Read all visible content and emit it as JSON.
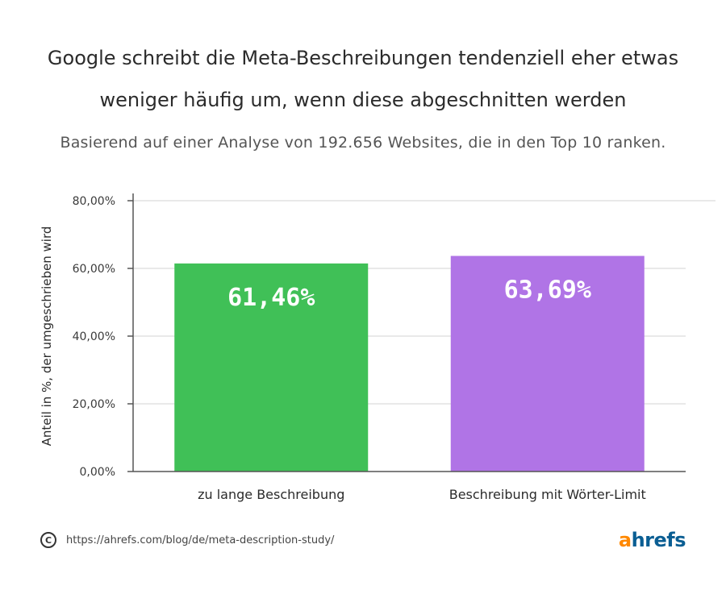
{
  "chart_data": {
    "type": "bar",
    "title_line1": "Google schreibt die Meta-Beschreibungen tendenziell eher etwas",
    "title_line2": "weniger häufig um, wenn diese abgeschnitten werden",
    "subtitle": "Basierend auf einer Analyse von 192.656 Websites, die in den Top 10 ranken.",
    "ylabel": "Anteil in %, der umgeschrieben wird",
    "xlabel": "",
    "categories": [
      "zu lange Beschreibung",
      "Beschreibung mit Wörter-Limit"
    ],
    "values": [
      61.46,
      63.69
    ],
    "data_labels": [
      "61,46%",
      "63,69%"
    ],
    "colors": [
      "#40c057",
      "#b074e6"
    ],
    "ylim": [
      0,
      80
    ],
    "yticks": [
      0,
      20,
      40,
      60,
      80
    ],
    "ytick_labels": [
      "0,00%",
      "20,00%",
      "40,00%",
      "60,00%",
      "80,00%"
    ],
    "grid": true,
    "legend": "none"
  },
  "footer": {
    "copyright_symbol": "C",
    "url": "https://ahrefs.com/blog/de/meta-description-study/"
  },
  "logo": {
    "first": "a",
    "rest": "hrefs"
  }
}
